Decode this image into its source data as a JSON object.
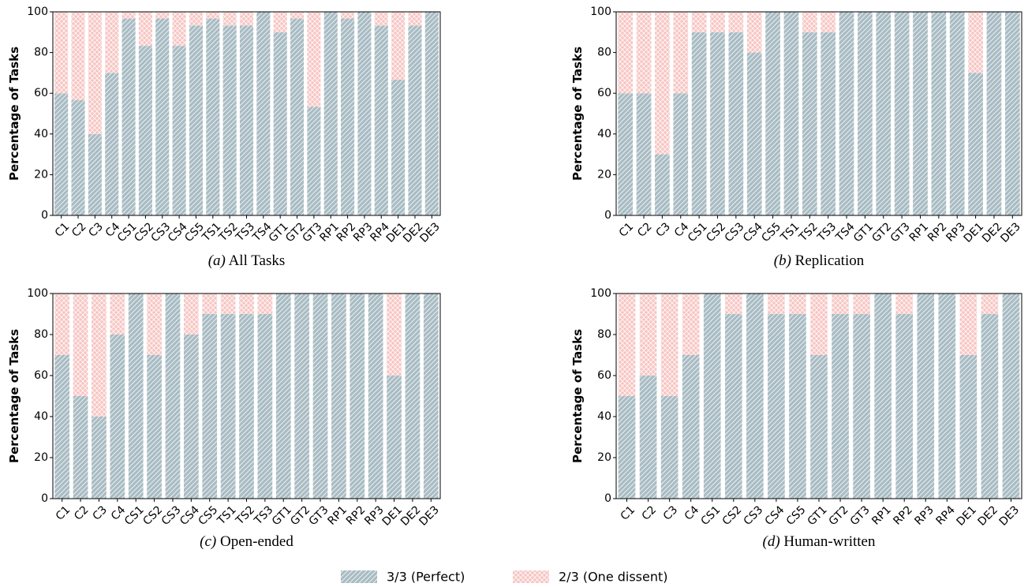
{
  "chart_data": [
    {
      "type": "bar",
      "stacked": true,
      "label": "(a)",
      "title": "All Tasks",
      "ylabel": "Percentage of Tasks",
      "categories": [
        "C1",
        "C2",
        "C3",
        "C4",
        "CS1",
        "CS2",
        "CS3",
        "CS4",
        "CS5",
        "TS1",
        "TS2",
        "TS3",
        "TS4",
        "GT1",
        "GT2",
        "GT3",
        "RP1",
        "RP2",
        "RP3",
        "RP4",
        "DE1",
        "DE2",
        "DE3"
      ],
      "series": [
        {
          "name": "3/3 (Perfect)",
          "color": "#a9bcc4",
          "hatch": "diagonal",
          "values": [
            60,
            56.7,
            40,
            70,
            96.7,
            83.3,
            96.7,
            83.3,
            93.3,
            96.7,
            93.3,
            93.3,
            100,
            90,
            96.7,
            53.3,
            100,
            96.7,
            100,
            93.3,
            66.7,
            93.3,
            100
          ]
        },
        {
          "name": "2/3 (One dissent)",
          "color": "#f7c5c2",
          "hatch": "cross",
          "values": [
            40,
            43.3,
            60,
            30,
            3.3,
            16.7,
            3.3,
            16.7,
            6.7,
            3.3,
            6.7,
            6.7,
            0,
            10,
            3.3,
            46.7,
            0,
            3.3,
            0,
            6.7,
            33.3,
            6.7,
            0
          ]
        }
      ],
      "ylim": [
        0,
        100
      ],
      "yticks": [
        0,
        20,
        40,
        60,
        80,
        100
      ]
    },
    {
      "type": "bar",
      "stacked": true,
      "label": "(b)",
      "title": "Replication",
      "ylabel": "Percentage of Tasks",
      "categories": [
        "C1",
        "C2",
        "C3",
        "C4",
        "CS1",
        "CS2",
        "CS3",
        "CS4",
        "CS5",
        "TS1",
        "TS2",
        "TS3",
        "TS4",
        "GT1",
        "GT2",
        "GT3",
        "RP1",
        "RP2",
        "RP3",
        "DE1",
        "DE2",
        "DE3"
      ],
      "series": [
        {
          "color": "#a9bcc4",
          "hatch": "diagonal",
          "values": [
            60,
            60,
            30,
            60,
            90,
            90,
            90,
            80,
            100,
            100,
            90,
            90,
            100,
            100,
            100,
            100,
            100,
            100,
            100,
            70,
            100,
            100
          ]
        },
        {
          "color": "#f7c5c2",
          "hatch": "cross",
          "values": [
            40,
            40,
            70,
            40,
            10,
            10,
            10,
            20,
            0,
            0,
            10,
            10,
            0,
            0,
            0,
            0,
            0,
            0,
            0,
            30,
            0,
            0
          ]
        }
      ],
      "ylim": [
        0,
        100
      ],
      "yticks": [
        0,
        20,
        40,
        60,
        80,
        100
      ]
    },
    {
      "type": "bar",
      "stacked": true,
      "label": "(c)",
      "title": "Open-ended",
      "ylabel": "Percentage of Tasks",
      "categories": [
        "C1",
        "C2",
        "C3",
        "C4",
        "CS1",
        "CS2",
        "CS3",
        "CS4",
        "CS5",
        "TS1",
        "TS2",
        "TS3",
        "GT1",
        "GT2",
        "GT3",
        "RP1",
        "RP2",
        "RP3",
        "DE1",
        "DE2",
        "DE3"
      ],
      "series": [
        {
          "color": "#a9bcc4",
          "hatch": "diagonal",
          "values": [
            70,
            50,
            40,
            80,
            100,
            70,
            100,
            80,
            90,
            90,
            90,
            90,
            100,
            100,
            100,
            100,
            100,
            100,
            60,
            100,
            100
          ]
        },
        {
          "color": "#f7c5c2",
          "hatch": "cross",
          "values": [
            30,
            50,
            60,
            20,
            0,
            30,
            0,
            20,
            10,
            10,
            10,
            10,
            0,
            0,
            0,
            0,
            0,
            0,
            40,
            0,
            0
          ]
        }
      ],
      "ylim": [
        0,
        100
      ],
      "yticks": [
        0,
        20,
        40,
        60,
        80,
        100
      ]
    },
    {
      "type": "bar",
      "stacked": true,
      "label": "(d)",
      "title": "Human-written",
      "ylabel": "Percentage of Tasks",
      "categories": [
        "C1",
        "C2",
        "C3",
        "C4",
        "CS1",
        "CS2",
        "CS3",
        "CS4",
        "CS5",
        "GT1",
        "GT2",
        "GT3",
        "RP1",
        "RP2",
        "RP3",
        "RP4",
        "DE1",
        "DE2",
        "DE3"
      ],
      "series": [
        {
          "color": "#a9bcc4",
          "hatch": "diagonal",
          "values": [
            50,
            60,
            50,
            70,
            100,
            90,
            100,
            90,
            90,
            70,
            90,
            90,
            100,
            90,
            100,
            100,
            70,
            90,
            100
          ]
        },
        {
          "color": "#f7c5c2",
          "hatch": "cross",
          "values": [
            50,
            40,
            50,
            30,
            0,
            10,
            0,
            10,
            10,
            30,
            10,
            10,
            0,
            10,
            0,
            0,
            30,
            10,
            0
          ]
        }
      ],
      "ylim": [
        0,
        100
      ],
      "yticks": [
        0,
        20,
        40,
        60,
        80,
        100
      ]
    }
  ]
}
